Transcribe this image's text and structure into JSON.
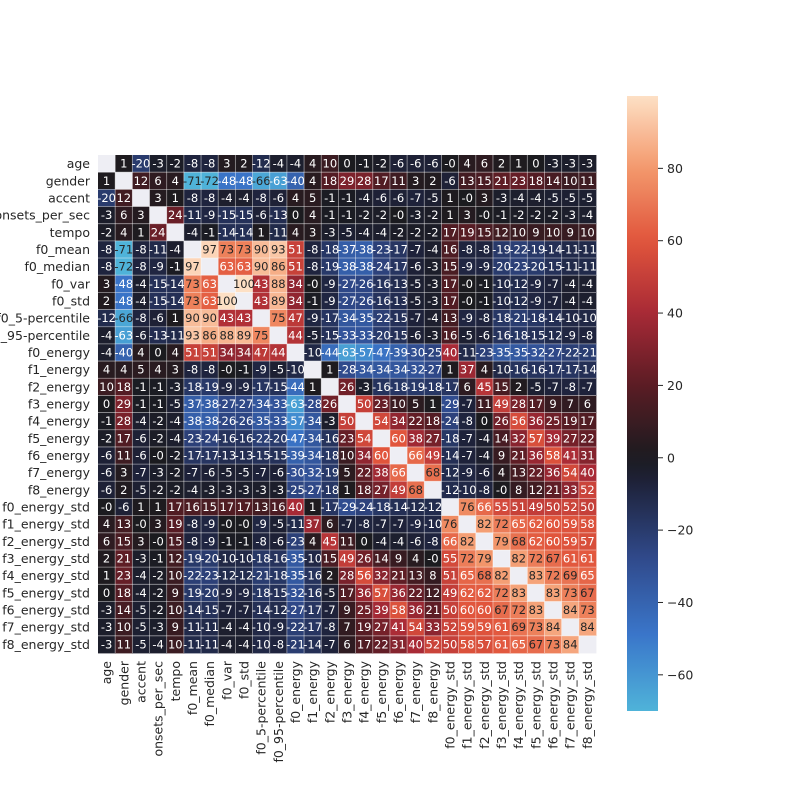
{
  "chart_data": {
    "type": "heatmap",
    "labels": [
      "age",
      "gender",
      "accent",
      "onsets_per_sec",
      "tempo",
      "f0_mean",
      "f0_median",
      "f0_var",
      "f0_std",
      "f0_5-percentile",
      "f0_95-percentile",
      "f0_energy",
      "f1_energy",
      "f2_energy",
      "f3_energy",
      "f4_energy",
      "f5_energy",
      "f6_energy",
      "f7_energy",
      "f8_energy",
      "f0_energy_std",
      "f1_energy_std",
      "f2_energy_std",
      "f3_energy_std",
      "f4_energy_std",
      "f5_energy_std",
      "f6_energy_std",
      "f7_energy_std",
      "f8_energy_std"
    ],
    "values": [
      [
        null,
        1,
        -20,
        -3,
        -2,
        -8,
        -8,
        3,
        2,
        -12,
        -4,
        -4,
        4,
        10,
        0,
        -1,
        -2,
        -6,
        -6,
        -6,
        0,
        4,
        6,
        2,
        1,
        0,
        -3,
        -3,
        -3
      ],
      [
        1,
        null,
        12,
        6,
        4,
        -71,
        -72,
        -48,
        -48,
        -66,
        -63,
        -40,
        4,
        18,
        29,
        28,
        17,
        11,
        3,
        2,
        -6,
        13,
        15,
        21,
        23,
        18,
        14,
        10,
        11
      ],
      [
        -20,
        12,
        null,
        3,
        1,
        -8,
        -8,
        -4,
        -4,
        -8,
        -6,
        4,
        5,
        -1,
        -1,
        -4,
        -6,
        -6,
        -7,
        -5,
        1,
        0,
        3,
        -3,
        -4,
        -4,
        -5,
        -5,
        -5
      ],
      [
        -3,
        6,
        3,
        null,
        24,
        -11,
        -9,
        -15,
        -15,
        -6,
        -13,
        0,
        4,
        -1,
        -1,
        -2,
        -2,
        0,
        -3,
        -2,
        1,
        3,
        0,
        -1,
        -2,
        -2,
        -2,
        -3,
        -4
      ],
      [
        -2,
        4,
        1,
        24,
        null,
        -4,
        -1,
        -14,
        -14,
        1,
        -11,
        4,
        3,
        -3,
        -5,
        -4,
        -4,
        -2,
        -2,
        -2,
        17,
        19,
        15,
        12,
        10,
        9,
        10,
        9,
        10
      ],
      [
        -8,
        -71,
        -8,
        -11,
        -4,
        null,
        97,
        73,
        73,
        90,
        93,
        51,
        -8,
        -18,
        -37,
        -38,
        -23,
        -17,
        -7,
        -4,
        16,
        -8,
        -8,
        -19,
        -22,
        -19,
        -14,
        -11,
        -11
      ],
      [
        -8,
        -72,
        -8,
        -9,
        -1,
        97,
        null,
        63,
        63,
        90,
        86,
        51,
        -8,
        -19,
        -38,
        -38,
        -24,
        -17,
        -6,
        -3,
        15,
        -9,
        -9,
        -20,
        -23,
        -20,
        -15,
        -11,
        -11
      ],
      [
        3,
        -48,
        -4,
        -15,
        -14,
        73,
        63,
        null,
        100,
        43,
        88,
        34,
        0,
        -9,
        -27,
        -26,
        -16,
        -13,
        -5,
        -3,
        17,
        0,
        -1,
        -10,
        -12,
        -9,
        -7,
        -4,
        -4
      ],
      [
        2,
        -48,
        -4,
        -15,
        -14,
        73,
        63,
        100,
        null,
        43,
        89,
        34,
        -1,
        -9,
        -27,
        -26,
        -16,
        -13,
        -5,
        -3,
        17,
        0,
        -1,
        -10,
        -12,
        -9,
        -7,
        -4,
        -4
      ],
      [
        -12,
        -66,
        -8,
        -6,
        1,
        90,
        90,
        43,
        43,
        null,
        75,
        47,
        -9,
        -17,
        -34,
        -35,
        -22,
        -15,
        -7,
        -4,
        13,
        -9,
        -8,
        -18,
        -21,
        -18,
        -14,
        -10,
        -10
      ],
      [
        -4,
        -63,
        -6,
        -13,
        -11,
        93,
        86,
        88,
        89,
        75,
        null,
        44,
        -5,
        -15,
        -33,
        -33,
        -20,
        -15,
        -6,
        -3,
        16,
        -5,
        -6,
        -16,
        -18,
        -15,
        -12,
        -9,
        -8
      ],
      [
        -4,
        -40,
        4,
        0,
        4,
        51,
        51,
        34,
        34,
        47,
        44,
        null,
        -10,
        -44,
        -63,
        -57,
        -47,
        -39,
        -30,
        -25,
        40,
        -11,
        -23,
        -35,
        -35,
        -32,
        -27,
        -22,
        -21
      ],
      [
        4,
        4,
        5,
        4,
        3,
        -8,
        -8,
        0,
        -1,
        -9,
        -5,
        -10,
        null,
        1,
        -28,
        -34,
        -34,
        -34,
        -32,
        -27,
        1,
        37,
        4,
        -10,
        -16,
        -16,
        -17,
        -17,
        -14
      ],
      [
        10,
        18,
        -1,
        -1,
        -3,
        -18,
        -19,
        -9,
        -9,
        -17,
        -15,
        -44,
        1,
        null,
        26,
        -3,
        -16,
        -18,
        -19,
        -18,
        -17,
        6,
        45,
        15,
        2,
        -5,
        -7,
        -8,
        -7
      ],
      [
        0,
        29,
        -1,
        -1,
        -5,
        -37,
        -38,
        -27,
        -27,
        -34,
        -33,
        -63,
        -28,
        26,
        null,
        50,
        23,
        10,
        5,
        1,
        -29,
        -7,
        11,
        49,
        28,
        17,
        9,
        7,
        6
      ],
      [
        -1,
        28,
        -4,
        -2,
        -4,
        -38,
        -38,
        -26,
        -26,
        -35,
        -33,
        -57,
        -34,
        -3,
        50,
        null,
        54,
        34,
        22,
        18,
        -24,
        -8,
        0,
        26,
        56,
        36,
        25,
        19,
        17
      ],
      [
        -2,
        17,
        -6,
        -2,
        -4,
        -23,
        -24,
        -16,
        -16,
        -22,
        -20,
        -47,
        -34,
        -16,
        23,
        54,
        null,
        60,
        38,
        27,
        -18,
        -7,
        -4,
        14,
        32,
        57,
        39,
        27,
        22
      ],
      [
        -6,
        11,
        -6,
        0,
        -2,
        -17,
        -17,
        -13,
        -13,
        -15,
        -15,
        -39,
        -34,
        -18,
        10,
        34,
        60,
        null,
        66,
        49,
        -14,
        -7,
        -4,
        9,
        21,
        36,
        58,
        41,
        31
      ],
      [
        -6,
        3,
        -7,
        -3,
        -2,
        -7,
        -6,
        -5,
        -5,
        -7,
        -6,
        -30,
        -32,
        -19,
        5,
        22,
        38,
        66,
        null,
        68,
        -12,
        -9,
        -6,
        4,
        13,
        22,
        36,
        54,
        40
      ],
      [
        -6,
        2,
        -5,
        -2,
        -2,
        -4,
        -3,
        -3,
        -3,
        -3,
        -3,
        -25,
        -27,
        -18,
        1,
        18,
        27,
        49,
        68,
        null,
        -12,
        -10,
        -8,
        0,
        8,
        12,
        21,
        33,
        52
      ],
      [
        0,
        -6,
        1,
        1,
        17,
        16,
        15,
        17,
        17,
        13,
        16,
        40,
        1,
        -17,
        -29,
        -24,
        -18,
        -14,
        -12,
        -12,
        null,
        76,
        66,
        55,
        51,
        49,
        50,
        52,
        50
      ],
      [
        4,
        13,
        0,
        3,
        19,
        -8,
        -9,
        0,
        0,
        -9,
        -5,
        -11,
        37,
        6,
        -7,
        -8,
        -7,
        -7,
        -9,
        -10,
        76,
        null,
        82,
        72,
        65,
        62,
        60,
        59,
        58
      ],
      [
        6,
        15,
        3,
        0,
        15,
        -8,
        -9,
        -1,
        -1,
        -8,
        -6,
        -23,
        4,
        45,
        11,
        0,
        -4,
        -4,
        -6,
        -8,
        66,
        82,
        null,
        79,
        68,
        62,
        60,
        59,
        57
      ],
      [
        2,
        21,
        -3,
        -1,
        12,
        -19,
        -20,
        -10,
        -10,
        -18,
        -16,
        -35,
        -10,
        15,
        49,
        26,
        14,
        9,
        4,
        0,
        55,
        72,
        79,
        null,
        82,
        72,
        67,
        61,
        61
      ],
      [
        1,
        23,
        -4,
        -2,
        10,
        -22,
        -23,
        -12,
        -12,
        -21,
        -18,
        -35,
        -16,
        2,
        28,
        56,
        32,
        21,
        13,
        8,
        51,
        65,
        68,
        82,
        null,
        83,
        72,
        69,
        65
      ],
      [
        0,
        18,
        -4,
        -2,
        9,
        -19,
        -20,
        -9,
        -9,
        -18,
        -15,
        -32,
        -16,
        -5,
        17,
        36,
        57,
        36,
        22,
        12,
        49,
        62,
        62,
        72,
        83,
        null,
        83,
        73,
        67
      ],
      [
        -3,
        14,
        -5,
        -2,
        10,
        -14,
        -15,
        -7,
        -7,
        -14,
        -12,
        -27,
        -17,
        -7,
        9,
        25,
        39,
        58,
        36,
        21,
        50,
        60,
        60,
        67,
        72,
        83,
        null,
        84,
        73
      ],
      [
        -3,
        10,
        -5,
        -3,
        9,
        -11,
        -11,
        -4,
        -4,
        -10,
        -9,
        -22,
        -17,
        -8,
        7,
        19,
        27,
        41,
        54,
        33,
        52,
        59,
        59,
        61,
        69,
        73,
        84,
        null,
        84
      ],
      [
        -3,
        11,
        -5,
        -4,
        10,
        -11,
        -11,
        -4,
        -4,
        -10,
        -8,
        -21,
        -14,
        -7,
        6,
        17,
        22,
        31,
        40,
        52,
        50,
        58,
        57,
        61,
        65,
        67,
        73,
        84,
        null
      ]
    ],
    "colorbar": {
      "range": [
        -70,
        100
      ],
      "ticks": [
        80,
        60,
        40,
        20,
        0,
        -20,
        -40,
        -60
      ]
    },
    "colormap": {
      "low": "#4fb3d9",
      "mid": "#1b1b1f",
      "high": "#fde0c5"
    },
    "diagonal_color": "#eeeef4"
  }
}
